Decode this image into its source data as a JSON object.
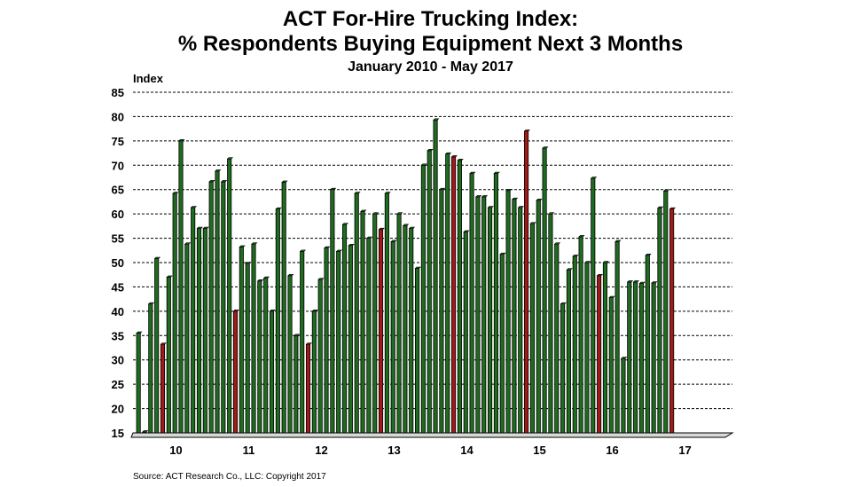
{
  "chart_data": {
    "type": "bar",
    "title": "ACT For-Hire Trucking Index:",
    "subtitle": "% Respondents Buying Equipment Next 3 Months",
    "date_range": "January 2010 - May 2017",
    "ylabel": "Index",
    "ylim": [
      15,
      85
    ],
    "yticks": [
      15,
      20,
      25,
      30,
      35,
      40,
      45,
      50,
      55,
      60,
      65,
      70,
      75,
      80,
      85
    ],
    "year_labels": [
      "10",
      "11",
      "12",
      "13",
      "14",
      "15",
      "16",
      "17"
    ],
    "grid": true,
    "colors": {
      "normal": "#1f6b1f",
      "highlight": "#a11a1a"
    },
    "values": [
      35.5,
      15.2,
      41.5,
      50.8,
      33.2,
      47.0,
      64.2,
      75.0,
      53.8,
      61.3,
      57.0,
      57.0,
      66.6,
      68.8,
      66.6,
      71.3,
      40.0,
      53.2,
      49.8,
      53.8,
      46.2,
      46.8,
      40.0,
      61.0,
      66.5,
      47.3,
      35.0,
      52.3,
      33.2,
      40.0,
      46.5,
      53.0,
      65.0,
      52.3,
      57.8,
      53.5,
      64.2,
      60.5,
      55.0,
      60.0,
      56.8,
      64.2,
      54.3,
      60.0,
      57.6,
      57.0,
      48.8,
      70.0,
      73.0,
      79.3,
      65.0,
      72.3,
      71.7,
      71.0,
      56.3,
      68.3,
      63.5,
      63.5,
      61.3,
      68.3,
      51.7,
      64.8,
      63.0,
      61.3,
      77.0,
      58.0,
      62.8,
      73.5,
      60.0,
      53.8,
      41.5,
      48.5,
      51.3,
      55.3,
      50.0,
      67.3,
      47.3,
      50.0,
      42.8,
      54.3,
      30.3,
      46.0,
      46.0,
      45.7,
      51.5,
      45.8,
      61.2,
      64.7,
      61.0
    ],
    "highlight_indices": [
      4,
      16,
      28,
      40,
      52,
      64,
      76,
      88
    ]
  },
  "source": "Source:  ACT Research Co., LLC: Copyright  2017"
}
